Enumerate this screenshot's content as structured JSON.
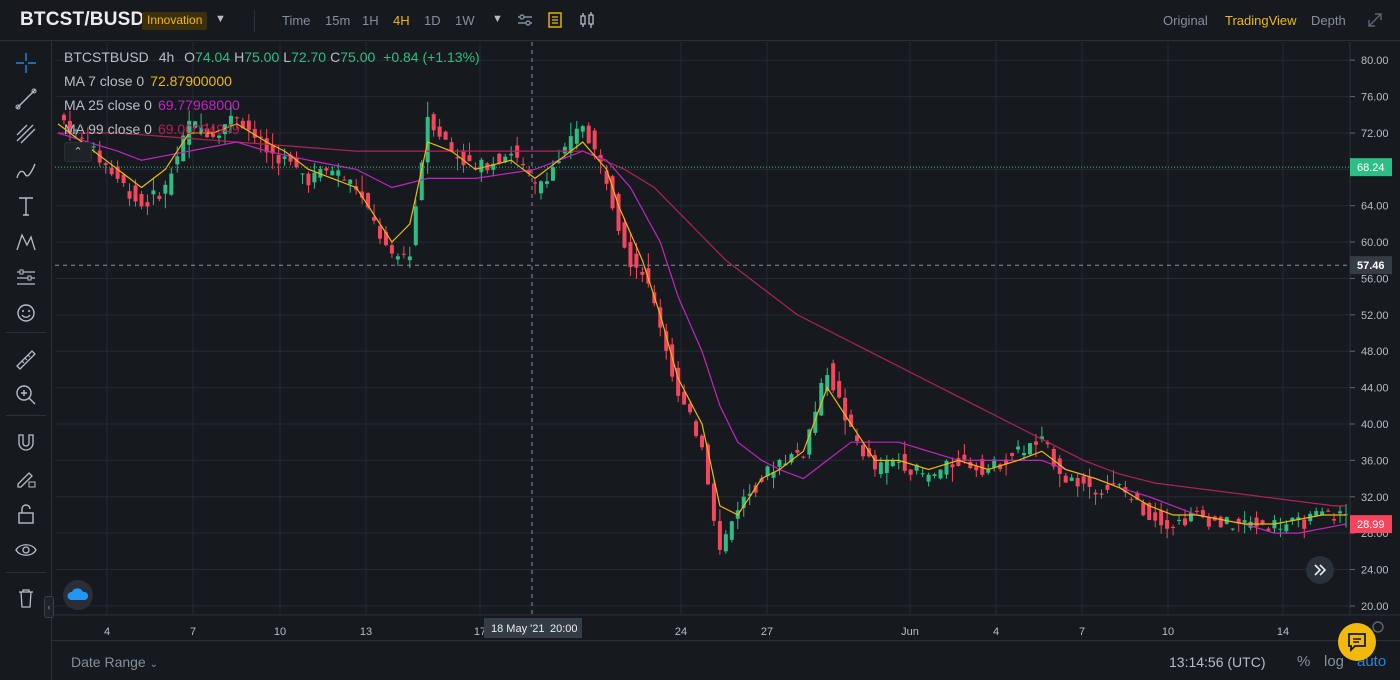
{
  "header": {
    "pair": "BTCST/BUSD",
    "tag": "Innovation",
    "intervals": [
      {
        "label": "Time",
        "active": false
      },
      {
        "label": "15m",
        "active": false
      },
      {
        "label": "1H",
        "active": false
      },
      {
        "label": "4H",
        "active": true
      },
      {
        "label": "1D",
        "active": false
      },
      {
        "label": "1W",
        "active": false
      }
    ],
    "views": [
      {
        "label": "Original",
        "active": false
      },
      {
        "label": "TradingView",
        "active": true
      },
      {
        "label": "Depth",
        "active": false
      }
    ]
  },
  "legend": {
    "symbol": "BTCSTBUSD",
    "timeframe": "4h",
    "ohlc": [
      {
        "label": "O",
        "value": "74.04"
      },
      {
        "label": "H",
        "value": "75.00"
      },
      {
        "label": "L",
        "value": "72.70"
      },
      {
        "label": "C",
        "value": "75.00"
      }
    ],
    "change": "+0.84 (+1.13%)",
    "ma": [
      {
        "label": "MA 7 close 0",
        "value": "72.87900000",
        "color": "#f0b90b"
      },
      {
        "label": "MA 25 close 0",
        "value": "69.77968000",
        "color": "#c224c2"
      },
      {
        "label": "MA 99 close 0",
        "value": "69.00094949",
        "color": "#b3215a"
      }
    ]
  },
  "bottom": {
    "date_range": "Date Range",
    "clock": "13:14:56 (UTC)",
    "pct": "%",
    "log": "log",
    "auto": "auto"
  },
  "chart_data": {
    "type": "candlestick",
    "timeframe": "4h",
    "ylim": [
      19,
      82
    ],
    "y_ticks": [
      "80.00",
      "76.00",
      "72.00",
      "68.00",
      "64.00",
      "60.00",
      "56.00",
      "52.00",
      "48.00",
      "44.00",
      "40.00",
      "36.00",
      "32.00",
      "28.00",
      "24.00",
      "20.00"
    ],
    "x_ticks": [
      "4",
      "7",
      "10",
      "13",
      "17",
      "24",
      "27",
      "Jun",
      "4",
      "7",
      "10",
      "14"
    ],
    "crosshair": {
      "date_label": "18 May '21",
      "time_label": "20:00",
      "price": "57.46"
    },
    "price_markers": [
      {
        "value": "68.24",
        "color": "#2ebd85"
      },
      {
        "value": "57.46",
        "color": "#363c44"
      },
      {
        "value": "28.99",
        "color": "#f6465d"
      }
    ],
    "up_color": "#2ebd85",
    "down_color": "#f6465d",
    "grid": true,
    "close_anchors": [
      [
        0,
        74
      ],
      [
        10,
        67
      ],
      [
        14,
        64
      ],
      [
        18,
        66
      ],
      [
        22,
        73
      ],
      [
        26,
        72
      ],
      [
        30,
        74
      ],
      [
        35,
        70
      ],
      [
        38,
        69
      ],
      [
        42,
        67
      ],
      [
        46,
        68
      ],
      [
        50,
        66
      ],
      [
        56,
        58
      ],
      [
        59,
        59
      ],
      [
        62,
        74
      ],
      [
        66,
        70
      ],
      [
        70,
        68
      ],
      [
        76,
        70
      ],
      [
        80,
        66
      ],
      [
        84,
        69
      ],
      [
        88,
        73
      ],
      [
        92,
        67
      ],
      [
        94,
        62
      ],
      [
        96,
        58
      ],
      [
        98,
        57
      ],
      [
        101,
        51
      ],
      [
        104,
        43
      ],
      [
        108,
        38
      ],
      [
        111,
        26
      ],
      [
        114,
        31
      ],
      [
        118,
        34
      ],
      [
        121,
        36
      ],
      [
        125,
        37
      ],
      [
        129,
        46
      ],
      [
        133,
        39
      ],
      [
        137,
        35
      ],
      [
        141,
        36
      ],
      [
        146,
        34
      ],
      [
        151,
        36
      ],
      [
        156,
        35
      ],
      [
        161,
        37
      ],
      [
        165,
        38
      ],
      [
        169,
        34
      ],
      [
        174,
        33
      ],
      [
        178,
        33
      ],
      [
        183,
        30
      ],
      [
        187,
        29
      ],
      [
        191,
        30
      ],
      [
        195,
        29
      ],
      [
        199,
        29
      ],
      [
        204,
        29
      ],
      [
        208,
        29
      ],
      [
        212,
        30
      ],
      [
        216,
        30
      ]
    ],
    "ma7_anchors": [
      [
        0,
        73
      ],
      [
        10,
        68
      ],
      [
        14,
        66
      ],
      [
        18,
        68
      ],
      [
        22,
        72
      ],
      [
        26,
        72
      ],
      [
        30,
        73
      ],
      [
        35,
        71
      ],
      [
        38,
        70
      ],
      [
        42,
        68
      ],
      [
        46,
        67
      ],
      [
        50,
        66
      ],
      [
        56,
        60
      ],
      [
        59,
        62
      ],
      [
        62,
        71
      ],
      [
        66,
        70
      ],
      [
        70,
        68
      ],
      [
        76,
        69
      ],
      [
        80,
        67
      ],
      [
        84,
        69
      ],
      [
        88,
        71
      ],
      [
        92,
        68
      ],
      [
        94,
        64
      ],
      [
        96,
        61
      ],
      [
        98,
        58
      ],
      [
        101,
        52
      ],
      [
        104,
        45
      ],
      [
        108,
        40
      ],
      [
        111,
        31
      ],
      [
        114,
        30
      ],
      [
        118,
        34
      ],
      [
        121,
        35
      ],
      [
        125,
        37
      ],
      [
        129,
        44
      ],
      [
        133,
        40
      ],
      [
        137,
        36
      ],
      [
        141,
        36
      ],
      [
        146,
        35
      ],
      [
        151,
        36
      ],
      [
        156,
        35
      ],
      [
        161,
        36
      ],
      [
        165,
        37
      ],
      [
        169,
        35
      ],
      [
        174,
        34
      ],
      [
        178,
        33
      ],
      [
        183,
        31
      ],
      [
        187,
        30
      ],
      [
        191,
        30
      ],
      [
        195,
        29.5
      ],
      [
        199,
        29
      ],
      [
        204,
        29
      ],
      [
        208,
        29.5
      ],
      [
        212,
        30
      ],
      [
        216,
        30
      ]
    ],
    "ma25_anchors": [
      [
        0,
        72
      ],
      [
        10,
        70
      ],
      [
        14,
        69
      ],
      [
        22,
        70
      ],
      [
        30,
        71
      ],
      [
        35,
        70
      ],
      [
        42,
        69
      ],
      [
        50,
        68
      ],
      [
        56,
        66
      ],
      [
        62,
        67
      ],
      [
        70,
        67
      ],
      [
        80,
        68
      ],
      [
        88,
        70
      ],
      [
        92,
        69
      ],
      [
        96,
        66
      ],
      [
        101,
        60
      ],
      [
        104,
        54
      ],
      [
        108,
        48
      ],
      [
        111,
        42
      ],
      [
        114,
        38
      ],
      [
        118,
        36
      ],
      [
        121,
        35
      ],
      [
        125,
        34
      ],
      [
        129,
        36
      ],
      [
        133,
        38
      ],
      [
        137,
        38
      ],
      [
        141,
        38
      ],
      [
        146,
        37
      ],
      [
        151,
        36
      ],
      [
        156,
        36
      ],
      [
        161,
        36
      ],
      [
        165,
        36
      ],
      [
        169,
        35
      ],
      [
        174,
        34
      ],
      [
        178,
        33
      ],
      [
        183,
        32
      ],
      [
        187,
        31
      ],
      [
        191,
        30
      ],
      [
        195,
        29.5
      ],
      [
        199,
        29
      ],
      [
        204,
        28
      ],
      [
        208,
        28
      ],
      [
        212,
        28.5
      ],
      [
        216,
        29
      ]
    ],
    "ma99_anchors": [
      [
        0,
        72
      ],
      [
        10,
        72
      ],
      [
        20,
        71.5
      ],
      [
        30,
        71
      ],
      [
        40,
        70.5
      ],
      [
        50,
        70
      ],
      [
        60,
        70
      ],
      [
        70,
        70
      ],
      [
        80,
        70
      ],
      [
        88,
        70
      ],
      [
        95,
        68
      ],
      [
        100,
        66
      ],
      [
        106,
        62
      ],
      [
        112,
        58
      ],
      [
        118,
        55
      ],
      [
        124,
        52
      ],
      [
        130,
        50
      ],
      [
        136,
        48
      ],
      [
        142,
        46
      ],
      [
        148,
        44
      ],
      [
        154,
        42
      ],
      [
        160,
        40
      ],
      [
        166,
        38
      ],
      [
        172,
        36
      ],
      [
        178,
        34.5
      ],
      [
        184,
        33.5
      ],
      [
        190,
        33
      ],
      [
        196,
        32.5
      ],
      [
        202,
        32
      ],
      [
        208,
        31.5
      ],
      [
        214,
        31
      ],
      [
        216,
        31
      ]
    ]
  }
}
